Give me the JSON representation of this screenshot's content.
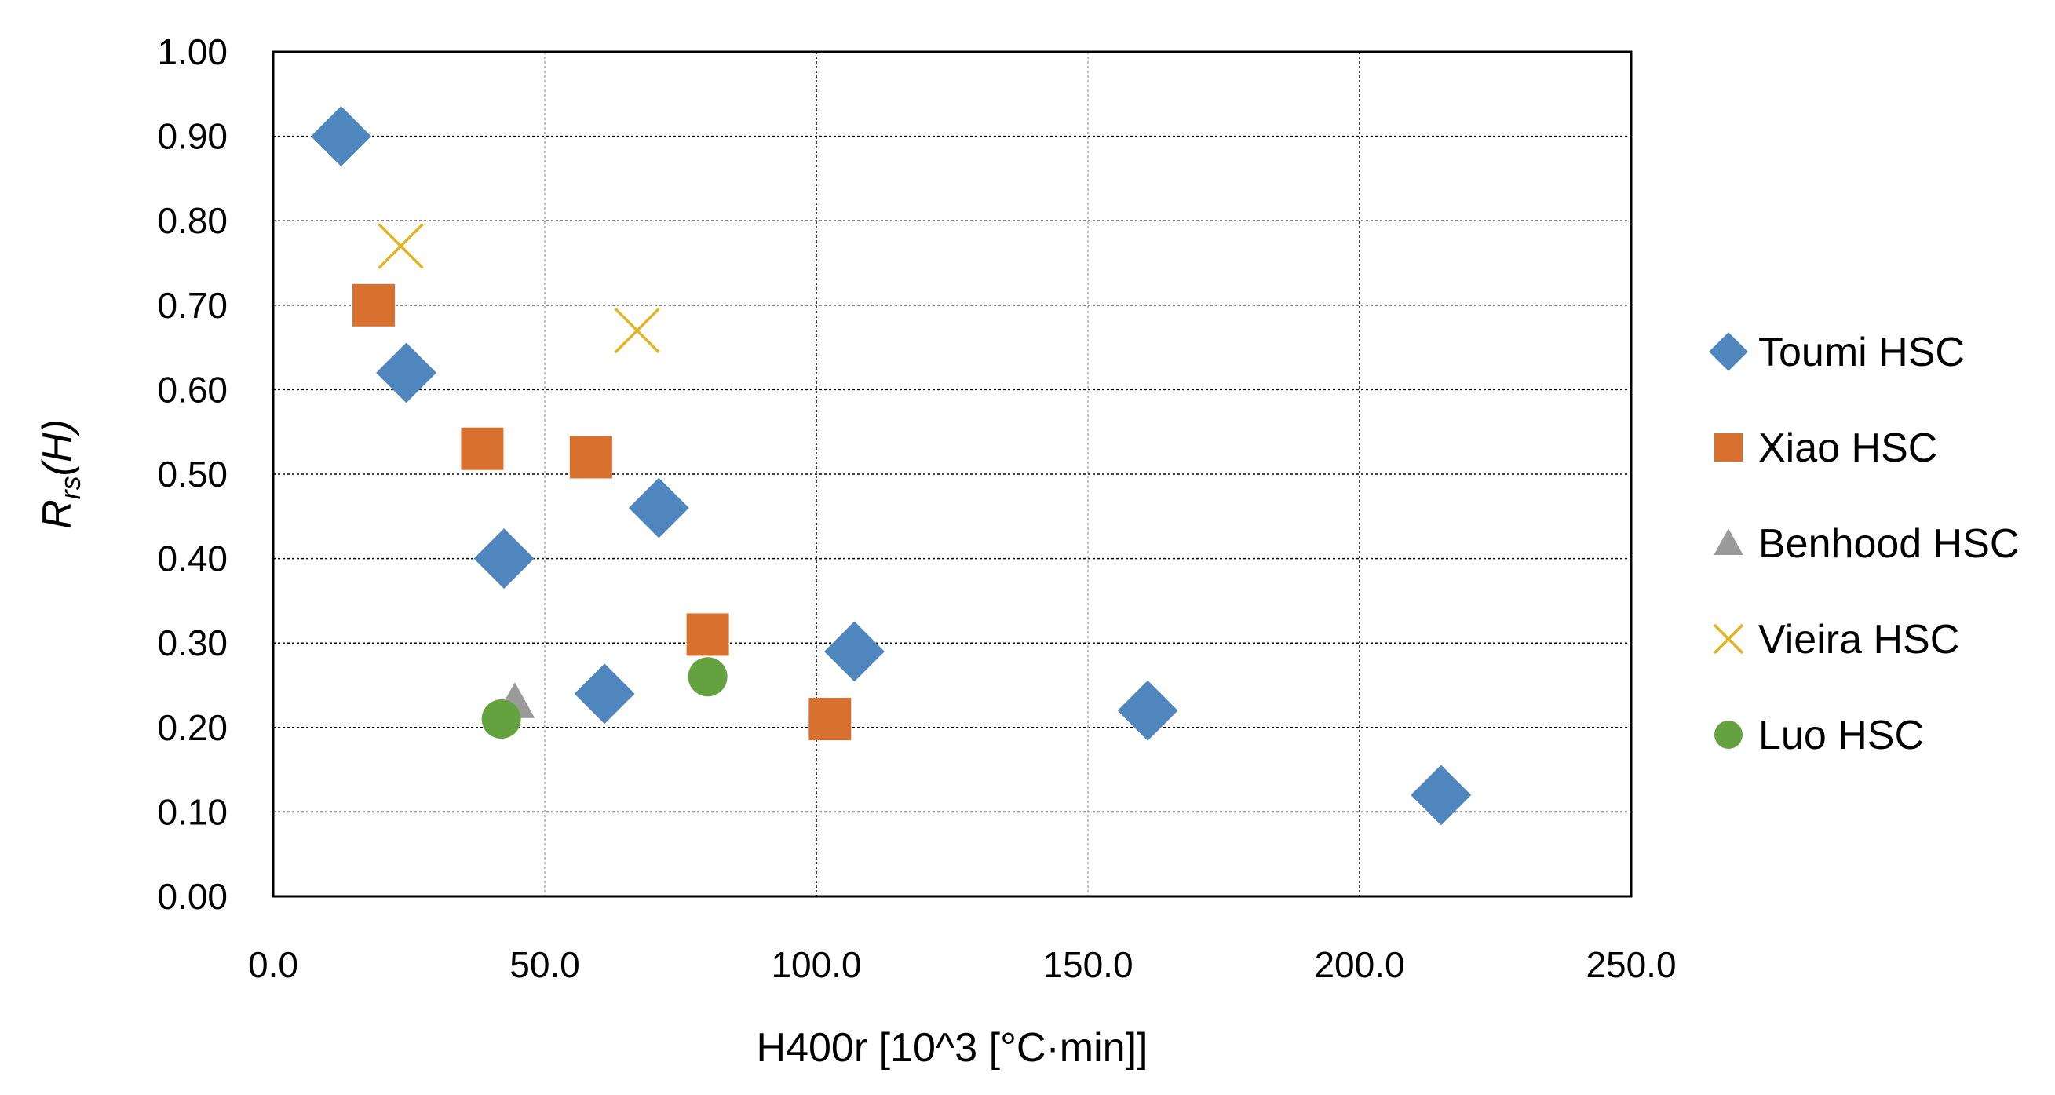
{
  "chart_data": {
    "type": "scatter",
    "title": "",
    "xlabel": "H400r [10^3 [°C·min]]",
    "ylabel_main": "R",
    "ylabel_sub": "rs",
    "ylabel_rest": "(H)",
    "xlim": [
      0,
      250
    ],
    "ylim": [
      0,
      1
    ],
    "x_ticks": [
      0,
      50,
      100,
      150,
      200,
      250
    ],
    "x_tick_labels": [
      "0.0",
      "50.0",
      "100.0",
      "150.0",
      "200.0",
      "250.0"
    ],
    "y_ticks": [
      0,
      0.1,
      0.2,
      0.3,
      0.4,
      0.5,
      0.6,
      0.7,
      0.8,
      0.9,
      1.0
    ],
    "y_tick_labels": [
      "0.00",
      "0.10",
      "0.20",
      "0.30",
      "0.40",
      "0.50",
      "0.60",
      "0.70",
      "0.80",
      "0.90",
      "1.00"
    ],
    "grid": true,
    "legend_position": "right",
    "series": [
      {
        "name": "Toumi HSC",
        "marker": "diamond",
        "color": "#4f86bd",
        "points": [
          [
            12.5,
            0.9
          ],
          [
            24.5,
            0.62
          ],
          [
            42.5,
            0.4
          ],
          [
            61,
            0.24
          ],
          [
            71,
            0.46
          ],
          [
            107,
            0.29
          ],
          [
            161,
            0.22
          ],
          [
            215,
            0.12
          ]
        ]
      },
      {
        "name": "Xiao HSC",
        "marker": "square",
        "color": "#d8702f",
        "points": [
          [
            18.5,
            0.7
          ],
          [
            38.5,
            0.53
          ],
          [
            58.5,
            0.52
          ],
          [
            80,
            0.31
          ],
          [
            102.5,
            0.21
          ]
        ]
      },
      {
        "name": "Benhood HSC",
        "marker": "triangle",
        "color": "#9a9a9a",
        "points": [
          [
            44.5,
            0.23
          ]
        ]
      },
      {
        "name": "Vieira HSC",
        "marker": "x",
        "color": "#e3b422",
        "points": [
          [
            23.5,
            0.77
          ],
          [
            67,
            0.67
          ]
        ]
      },
      {
        "name": "Luo HSC",
        "marker": "circle",
        "color": "#63a23f",
        "points": [
          [
            42,
            0.21
          ],
          [
            80,
            0.26
          ]
        ]
      }
    ]
  }
}
